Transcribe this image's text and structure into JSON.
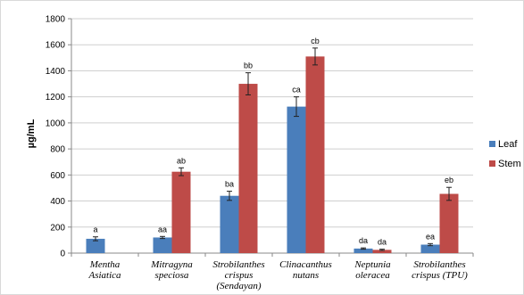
{
  "chart_data": {
    "type": "bar",
    "ylabel": "µg/mL",
    "xlabel": "",
    "title": "",
    "ylim": [
      0,
      1800
    ],
    "yticks": [
      0,
      200,
      400,
      600,
      800,
      1000,
      1200,
      1400,
      1600,
      1800
    ],
    "grid": true,
    "legend_position": "right",
    "categories": [
      [
        "Mentha",
        "Asiatica"
      ],
      [
        "Mitragyna",
        "speciosa"
      ],
      [
        "Strobilanthes",
        "crispus",
        "(Sendayan)"
      ],
      [
        "Clinacanthus",
        "nutans"
      ],
      [
        "Neptunia",
        "oleracea"
      ],
      [
        "Strobilanthes",
        "crispus (TPU)"
      ]
    ],
    "series": [
      {
        "name": "Leaf",
        "color": "#4a7ebb",
        "values": [
          110,
          120,
          440,
          1125,
          35,
          65
        ],
        "errors": [
          15,
          8,
          35,
          75,
          5,
          8
        ],
        "labels": [
          "a",
          "aa",
          "ba",
          "ca",
          "da",
          "ea"
        ]
      },
      {
        "name": "Stem",
        "color": "#be4b48",
        "values": [
          null,
          625,
          1300,
          1510,
          25,
          455
        ],
        "errors": [
          null,
          30,
          85,
          65,
          5,
          50
        ],
        "labels": [
          "",
          "ab",
          "bb",
          "cb",
          "da",
          "eb"
        ]
      }
    ]
  }
}
